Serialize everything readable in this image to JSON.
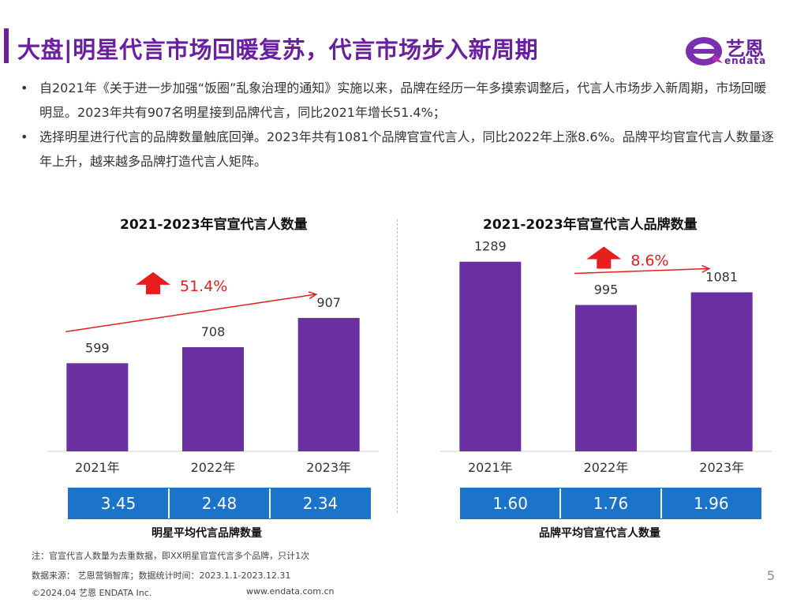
{
  "header": {
    "title": "大盘|明星代言市场回暖复苏，代言市场步入新周期",
    "logo_cn": "艺恩",
    "logo_en": "endata"
  },
  "bullets": [
    "自2021年《关于进一步加强“饭圈”乱象治理的通知》实施以来，品牌在经历一年多摸索调整后，代言人市场步入新周期，市场回暖明显。2023年共有907名明星接到品牌代言，同比2021年增长51.4%；",
    "选择明星进行代言的品牌数量触底回弹。2023年共有1081个品牌官宣代言人，同比2022年上涨8.6%。品牌平均官宣代言人数量逐年上升，越来越多品牌打造代言人矩阵。"
  ],
  "colors": {
    "bar": "#6a2fa0",
    "arrow": "#e61e1e",
    "stat_bg": "#1b74c9",
    "accent": "#6a1fa1"
  },
  "chart_data": [
    {
      "type": "bar",
      "title": "2021-2023年官宣代言人数量",
      "categories": [
        "2021年",
        "2022年",
        "2023年"
      ],
      "values": [
        599,
        708,
        907
      ],
      "growth_label": "51.4%",
      "growth_from": 0,
      "growth_to": 2,
      "ylim": [
        0,
        1350
      ],
      "stats": [
        "3.45",
        "2.48",
        "2.34"
      ],
      "stats_label": "明星平均代言品牌数量"
    },
    {
      "type": "bar",
      "title": "2021-2023年官宣代言人品牌数量",
      "categories": [
        "2021年",
        "2022年",
        "2023年"
      ],
      "values": [
        1289,
        995,
        1081
      ],
      "growth_label": "8.6%",
      "growth_from": 1,
      "growth_to": 2,
      "ylim": [
        0,
        1350
      ],
      "stats": [
        "1.60",
        "1.76",
        "1.96"
      ],
      "stats_label": "品牌平均官宣代言人数量"
    }
  ],
  "footer": {
    "note": "注：官宣代言人数量为去重数据，即XX明星官宣代言多个品牌，只计1次",
    "source": "数据来源： 艺恩营销智库；数据统计时间：2023.1.1-2023.12.31",
    "copyright": "©2024.04 艺恩 ENDATA Inc.",
    "website": "www.endata.com.cn",
    "page": "5"
  }
}
